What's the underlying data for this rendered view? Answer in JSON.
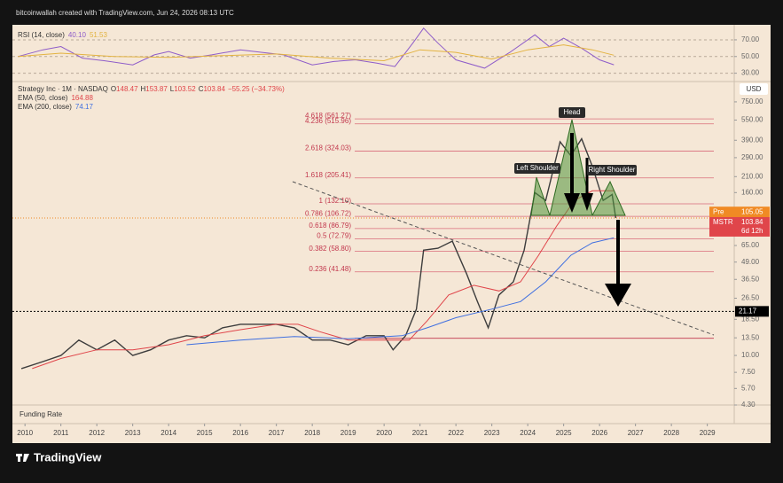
{
  "header": "bitcoinwallah created with TradingView.com, Jun 24, 2026 08:13 UTC",
  "footer": "TradingView",
  "funding_panel": "Funding Rate",
  "chart_data": [
    {
      "type": "line",
      "title": "RSI (14, close)",
      "legend_values": [
        {
          "value": 40.1,
          "label": "40.10"
        },
        51.53
      ],
      "xlim": [
        2009.65,
        2029.75
      ],
      "ylim": [
        20,
        88
      ],
      "yticks": [
        {
          "value": 70,
          "label": "70.00"
        },
        {
          "value": 50,
          "label": "50.00"
        },
        {
          "value": 30,
          "label": "30.00"
        }
      ],
      "series": [
        {
          "color": "#8e5cc9",
          "x": [
            2009.8,
            2010.5,
            2011.0,
            2011.6,
            2012.2,
            2013.0,
            2013.6,
            2014.0,
            2014.6,
            2015.2,
            2016.0,
            2016.6,
            2017.2,
            2018.0,
            2018.6,
            2019.2,
            2019.8,
            2020.3,
            2020.8,
            2021.1,
            2021.5,
            2022.0,
            2022.8,
            2023.5,
            2024.2,
            2024.6,
            2025.0,
            2025.5,
            2026.0,
            2026.4
          ],
          "values": [
            50,
            58,
            62,
            48,
            45,
            40,
            52,
            56,
            48,
            52,
            58,
            55,
            52,
            40,
            44,
            46,
            42,
            38,
            66,
            84,
            66,
            46,
            36,
            55,
            76,
            62,
            72,
            60,
            46,
            40.1
          ]
        },
        {
          "color": "#e3b341",
          "x": [
            2009.8,
            2011.0,
            2012.5,
            2014.0,
            2015.5,
            2017.0,
            2018.5,
            2020.0,
            2021.0,
            2022.0,
            2023.0,
            2024.0,
            2025.0,
            2025.8,
            2026.4
          ],
          "values": [
            50,
            54,
            50,
            49,
            51,
            53,
            48,
            45,
            58,
            55,
            47,
            58,
            64,
            58,
            51.53
          ]
        }
      ]
    },
    {
      "type": "line",
      "log_scale": true,
      "legend_quote": [
        {
          "key": "O",
          "value": 148.47
        },
        {
          "key": "H",
          "value": 153.87
        },
        {
          "key": "L",
          "value": 103.52
        },
        {
          "key": "C",
          "value": 103.84
        }
      ],
      "change": {
        "value": -55.25,
        "label": "−55.25"
      },
      "change_pct": {
        "value": -34.73,
        "label": "(−34.73%)"
      },
      "currency": "USD",
      "xlim": [
        2009.65,
        2029.75
      ],
      "ylim": [
        4.3,
        1060
      ],
      "xticks": [
        2010,
        2011,
        2012,
        2013,
        2014,
        2015,
        2016,
        2017,
        2018,
        2019,
        2020,
        2021,
        2022,
        2023,
        2024,
        2025,
        2026,
        2027,
        2028,
        2029
      ],
      "yticks": [
        {
          "value": 750,
          "label": "750.00"
        },
        {
          "value": 550,
          "label": "550.00"
        },
        {
          "value": 390,
          "label": "390.00"
        },
        {
          "value": 290,
          "label": "290.00"
        },
        {
          "value": 210,
          "label": "210.00"
        },
        {
          "value": 160,
          "label": "160.00"
        },
        {
          "value": 65,
          "label": "65.00"
        },
        {
          "value": 49,
          "label": "49.00"
        },
        {
          "value": 36.5,
          "label": "36.50"
        },
        {
          "value": 26.5,
          "label": "26.50"
        },
        {
          "value": 18.5,
          "label": "18.50"
        },
        {
          "value": 13.5,
          "label": "13.50"
        },
        {
          "value": 10,
          "label": "10.00"
        },
        {
          "value": 7.5,
          "label": "7.50"
        },
        {
          "value": 5.7,
          "label": "5.70"
        },
        {
          "value": 4.3,
          "label": "4.30"
        }
      ],
      "series": [
        {
          "name": "Strategy Inc · 1M · NASDAQ",
          "color": "#3d3d3d",
          "x": [
            2009.9,
            2010.5,
            2011.0,
            2011.5,
            2012.0,
            2012.5,
            2013.0,
            2013.5,
            2014.0,
            2014.5,
            2015.0,
            2015.5,
            2016.0,
            2016.5,
            2017.0,
            2017.5,
            2018.0,
            2018.5,
            2019.0,
            2019.5,
            2020.0,
            2020.25,
            2020.6,
            2020.9,
            2021.1,
            2021.5,
            2021.9,
            2022.3,
            2022.6,
            2022.9,
            2023.2,
            2023.6,
            2023.9,
            2024.2,
            2024.5,
            2024.9,
            2025.2,
            2025.5,
            2025.8,
            2026.1,
            2026.35,
            2026.45
          ],
          "values": [
            8,
            9,
            10,
            13,
            11,
            13,
            10,
            11,
            13,
            14,
            13.5,
            16,
            17,
            17,
            17,
            16,
            13,
            13,
            12,
            14,
            14,
            11,
            14,
            22,
            60,
            62,
            70,
            40,
            25,
            16,
            28,
            35,
            60,
            160,
            140,
            380,
            300,
            400,
            250,
            140,
            155,
            103.84
          ]
        },
        {
          "name": "EMA (50, close)",
          "color": "#e0454a",
          "x": [
            2010.2,
            2011,
            2012,
            2013,
            2014,
            2015,
            2016,
            2017,
            2017.6,
            2018.2,
            2019,
            2020,
            2020.7,
            2021.2,
            2021.8,
            2022.5,
            2023.2,
            2023.8,
            2024.3,
            2024.8,
            2025.3,
            2025.8,
            2026.4
          ],
          "values": [
            8,
            9.5,
            11,
            11,
            12,
            14,
            15.5,
            17,
            17,
            15,
            13,
            13,
            13,
            18,
            28,
            33,
            30,
            35,
            55,
            90,
            140,
            165,
            164.88
          ]
        },
        {
          "name": "EMA (200, close)",
          "color": "#3f6fe0",
          "x": [
            2014.5,
            2016,
            2017.5,
            2019,
            2020.5,
            2021.2,
            2022,
            2023,
            2023.8,
            2024.5,
            2025.2,
            2025.8,
            2026.4
          ],
          "values": [
            12,
            13,
            13.8,
            13.3,
            14,
            16,
            19,
            22,
            25,
            35,
            55,
            68,
            74.17
          ]
        }
      ],
      "levels": [
        {
          "label": "4.618 (561.27)",
          "value": 561.27
        },
        {
          "label": "4.236 (515.96)",
          "value": 515.96
        },
        {
          "label": "2.618 (324.03)",
          "value": 324.03
        },
        {
          "label": "1.618 (205.41)",
          "value": 205.41
        },
        {
          "label": "1 (132.10)",
          "value": 132.1
        },
        {
          "label": "0.786 (106.72)",
          "value": 106.72
        },
        {
          "label": "0.618 (86.79)",
          "value": 86.79
        },
        {
          "label": "0.5 (72.79)",
          "value": 72.79
        },
        {
          "label": "0.382 (58.80)",
          "value": 58.8
        },
        {
          "label": "0.236 (41.48)",
          "value": 41.48
        }
      ],
      "base_level": 13.4,
      "support_line": 21.17,
      "price_tags": [
        {
          "name": "Pre",
          "value": 105.05,
          "color": "#f08a24"
        },
        {
          "name": "MSTR",
          "value": 103.84,
          "color": "#e0454a",
          "timer": "6d 12h"
        }
      ],
      "annotations": [
        "Head",
        "Left Shoulder",
        "Right Shoulder"
      ]
    }
  ]
}
